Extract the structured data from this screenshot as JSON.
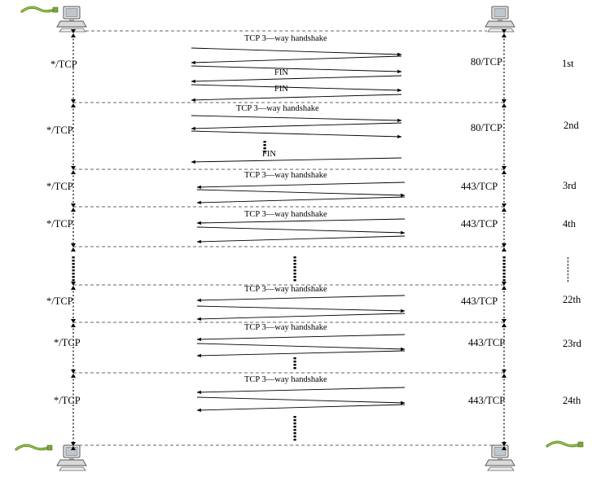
{
  "title": "",
  "colors": {
    "line": "#000000",
    "dash": "#555555",
    "cable": "#5a8a1e",
    "computer": "#cccccc"
  },
  "icons": [
    "computer-icon",
    "network-cable-icon"
  ],
  "handshake_label": "TCP 3—way handshake",
  "fin_label": "FIN",
  "sessions": [
    {
      "ordinal": "1st",
      "client_port": "*/TCP",
      "server_port": "80/TCP",
      "handshake_label": "TCP 3—way handshake",
      "fin_labels": [
        "FIN",
        "FIN"
      ],
      "ellipsis": false
    },
    {
      "ordinal": "2nd",
      "client_port": "*/TCP",
      "server_port": "80/TCP",
      "handshake_label": "TCP 3—way handshake",
      "fin_labels": [
        "FIN"
      ],
      "ellipsis": true
    },
    {
      "ordinal": "3rd",
      "client_port": "*/TCP",
      "server_port": "443/TCP",
      "handshake_label": "TCP 3—way handshake",
      "fin_labels": [],
      "ellipsis": false
    },
    {
      "ordinal": "4th",
      "client_port": "*/TCP",
      "server_port": "443/TCP",
      "handshake_label": "TCP 3—way handshake",
      "fin_labels": [],
      "ellipsis": false
    },
    {
      "ordinal": "22th",
      "client_port": "*/TCP",
      "server_port": "443/TCP",
      "handshake_label": "TCP 3—way handshake",
      "fin_labels": [],
      "ellipsis": false
    },
    {
      "ordinal": "23rd",
      "client_port": "*/TCP",
      "server_port": "443/TCP",
      "handshake_label": "TCP 3—way handshake",
      "fin_labels": [],
      "ellipsis": true
    },
    {
      "ordinal": "24th",
      "client_port": "*/TCP",
      "server_port": "443/TCP",
      "handshake_label": "TCP 3—way handshake",
      "fin_labels": [],
      "ellipsis": true
    }
  ]
}
